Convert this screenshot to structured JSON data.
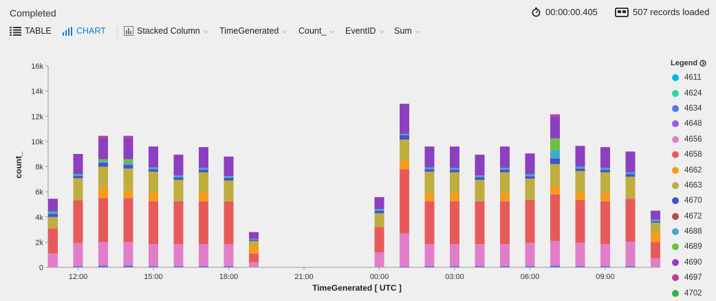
{
  "status": "Completed",
  "timer": {
    "icon": "stopwatch-icon",
    "value": "00:00:00.405"
  },
  "records": {
    "icon": "records-icon",
    "text": "507 records loaded"
  },
  "toolbar": {
    "table": "TABLE",
    "chart": "CHART",
    "chart_type": "Stacked Column",
    "x_field": "TimeGenerated",
    "y_field": "Count_",
    "split_field": "EventID",
    "aggregation": "Sum"
  },
  "legend": {
    "title": "Legend"
  },
  "chart_data": {
    "type": "bar",
    "stacked": true,
    "xlabel": "TimeGenerated [ UTC ]",
    "ylabel": "count_",
    "ylim": [
      0,
      16000
    ],
    "yticks": [
      0,
      2000,
      4000,
      6000,
      8000,
      10000,
      12000,
      14000,
      16000
    ],
    "ytick_labels": [
      "0",
      "2k",
      "4k",
      "6k",
      "8k",
      "10k",
      "12k",
      "14k",
      "16k"
    ],
    "xtick_labels": [
      "12:00",
      "15:00",
      "18:00",
      "21:00",
      "00:00",
      "03:00",
      "06:00",
      "09:00"
    ],
    "grid": false,
    "legend_position": "right",
    "categories": [
      "11:00",
      "12:00",
      "13:00",
      "14:00",
      "15:00",
      "16:00",
      "17:00",
      "18:00",
      "19:00",
      "20:00",
      "21:00",
      "22:00",
      "23:00",
      "00:00",
      "01:00",
      "02:00",
      "03:00",
      "04:00",
      "05:00",
      "06:00",
      "07:00",
      "08:00",
      "09:00",
      "10:00",
      "11:00"
    ],
    "series": [
      {
        "name": "4611",
        "color": "#00b7e0",
        "values": [
          0,
          0,
          0,
          0,
          0,
          0,
          0,
          0,
          0,
          0,
          0,
          0,
          0,
          0,
          0,
          0,
          0,
          0,
          0,
          0,
          0,
          0,
          0,
          0,
          0
        ]
      },
      {
        "name": "4624",
        "color": "#2fd69a",
        "values": [
          0,
          0,
          0,
          0,
          0,
          0,
          0,
          0,
          0,
          0,
          0,
          0,
          0,
          0,
          0,
          0,
          0,
          0,
          0,
          0,
          0,
          0,
          0,
          0,
          0
        ]
      },
      {
        "name": "4634",
        "color": "#5a73e8",
        "values": [
          0,
          80,
          150,
          150,
          100,
          100,
          100,
          100,
          0,
          0,
          0,
          0,
          0,
          0,
          50,
          100,
          100,
          100,
          100,
          100,
          150,
          100,
          100,
          100,
          0
        ]
      },
      {
        "name": "4648",
        "color": "#9b59e8",
        "values": [
          0,
          0,
          0,
          0,
          0,
          0,
          0,
          0,
          0,
          0,
          0,
          0,
          0,
          0,
          0,
          0,
          0,
          0,
          0,
          0,
          0,
          0,
          0,
          0,
          0
        ]
      },
      {
        "name": "4656",
        "color": "#e27ec9",
        "values": [
          1100,
          1850,
          1850,
          1850,
          1750,
          1750,
          1750,
          1750,
          400,
          0,
          0,
          0,
          0,
          1200,
          2650,
          1750,
          1750,
          1750,
          1750,
          1850,
          1950,
          1850,
          1750,
          1950,
          700
        ]
      },
      {
        "name": "4658",
        "color": "#e85a5a",
        "values": [
          2000,
          3400,
          3500,
          3500,
          3400,
          3400,
          3400,
          3400,
          700,
          0,
          0,
          0,
          0,
          2000,
          5100,
          3400,
          3400,
          3400,
          3400,
          3400,
          3700,
          3400,
          3400,
          3400,
          1300
        ]
      },
      {
        "name": "4662",
        "color": "#f79b1a",
        "values": [
          0,
          0,
          850,
          600,
          700,
          0,
          650,
          0,
          600,
          0,
          0,
          0,
          0,
          0,
          700,
          600,
          650,
          0,
          650,
          0,
          700,
          600,
          650,
          0,
          750
        ]
      },
      {
        "name": "4663",
        "color": "#bfad40",
        "values": [
          900,
          1750,
          1650,
          1750,
          1650,
          1700,
          1650,
          1650,
          400,
          0,
          0,
          0,
          0,
          1100,
          1650,
          1750,
          1650,
          1700,
          1650,
          1700,
          1700,
          1700,
          1650,
          1750,
          800
        ]
      },
      {
        "name": "4670",
        "color": "#4650c8",
        "values": [
          250,
          180,
          300,
          300,
          200,
          200,
          200,
          200,
          100,
          0,
          0,
          0,
          0,
          180,
          350,
          200,
          200,
          200,
          200,
          200,
          450,
          200,
          200,
          200,
          100
        ]
      },
      {
        "name": "4672",
        "color": "#b0503c",
        "values": [
          0,
          0,
          0,
          0,
          0,
          0,
          0,
          0,
          0,
          0,
          0,
          0,
          0,
          0,
          0,
          0,
          0,
          0,
          0,
          0,
          0,
          0,
          0,
          0,
          0
        ]
      },
      {
        "name": "4688",
        "color": "#3eacc7",
        "values": [
          200,
          150,
          150,
          150,
          150,
          150,
          150,
          150,
          50,
          0,
          0,
          0,
          0,
          150,
          100,
          150,
          150,
          150,
          150,
          150,
          700,
          150,
          150,
          150,
          150
        ]
      },
      {
        "name": "4689",
        "color": "#70bd3e",
        "values": [
          0,
          0,
          150,
          300,
          0,
          0,
          0,
          0,
          0,
          0,
          0,
          0,
          0,
          0,
          0,
          0,
          0,
          0,
          0,
          0,
          900,
          0,
          0,
          0,
          0
        ]
      },
      {
        "name": "4690",
        "color": "#8c3fc0",
        "values": [
          1000,
          1600,
          1700,
          1700,
          1650,
          1650,
          1650,
          1550,
          550,
          0,
          0,
          0,
          0,
          950,
          2400,
          1650,
          1700,
          1650,
          1700,
          1650,
          1750,
          1650,
          1650,
          1650,
          700
        ]
      },
      {
        "name": "4697",
        "color": "#bf3b94",
        "values": [
          0,
          0,
          150,
          150,
          0,
          0,
          0,
          0,
          0,
          0,
          0,
          0,
          0,
          0,
          0,
          0,
          0,
          0,
          0,
          0,
          150,
          0,
          0,
          0,
          0
        ]
      }
    ]
  }
}
